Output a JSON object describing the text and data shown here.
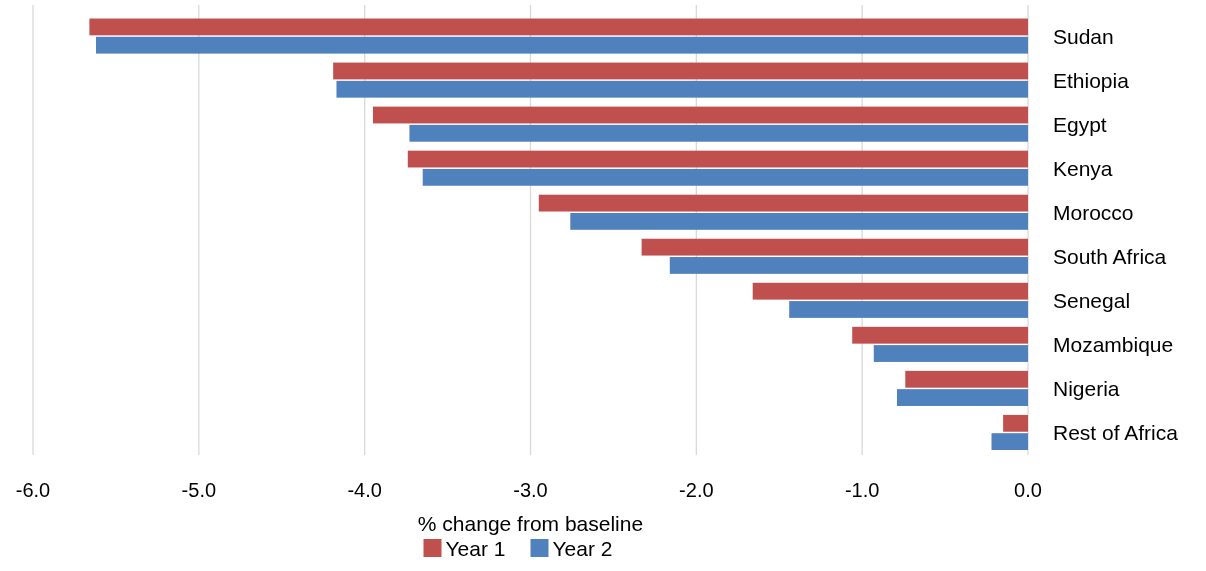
{
  "chart_data": {
    "type": "bar",
    "orientation": "horizontal",
    "xlabel": "% change from baseline",
    "categories": [
      "Sudan",
      "Ethiopia",
      "Egypt",
      "Kenya",
      "Morocco",
      "South Africa",
      "Senegal",
      "Mozambique",
      "Nigeria",
      "Rest of Africa"
    ],
    "series": [
      {
        "name": "Year 1",
        "color": "#c0504d",
        "values": [
          -5.66,
          -4.19,
          -3.95,
          -3.74,
          -2.95,
          -2.33,
          -1.66,
          -1.06,
          -0.74,
          -0.15
        ]
      },
      {
        "name": "Year 2",
        "color": "#4f81bd",
        "values": [
          -5.62,
          -4.17,
          -3.73,
          -3.65,
          -2.76,
          -2.16,
          -1.44,
          -0.93,
          -0.79,
          -0.22
        ]
      }
    ],
    "xlim": [
      -6,
      0
    ],
    "xticks": [
      {
        "value": -6,
        "label": "-6.0"
      },
      {
        "value": -5,
        "label": "-5.0"
      },
      {
        "value": -4,
        "label": "-4.0"
      },
      {
        "value": -3,
        "label": "-3.0"
      },
      {
        "value": -2,
        "label": "-2.0"
      },
      {
        "value": -1,
        "label": "-1.0"
      },
      {
        "value": 0,
        "label": "0.0"
      }
    ],
    "grid": "x",
    "legend": "bottom"
  }
}
